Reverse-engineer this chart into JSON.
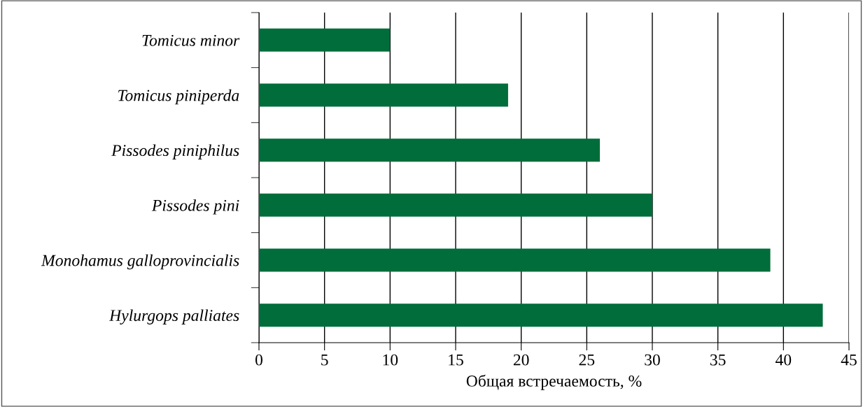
{
  "chart_data": {
    "type": "bar",
    "orientation": "horizontal",
    "xlabel": "Общая встречаемость, %",
    "categories": [
      "Tomicus minor",
      "Tomicus piniperda",
      "Pissodes piniphilus",
      "Pissodes pini",
      "Monohamus galloprovincialis",
      "Hylurgops palliates"
    ],
    "values": [
      10,
      19,
      26,
      30,
      39,
      43
    ],
    "color": "#006d3a",
    "xlim": [
      0,
      45
    ],
    "xticks": [
      0,
      5,
      10,
      15,
      20,
      25,
      30,
      35,
      40,
      45
    ],
    "grid": "x"
  }
}
